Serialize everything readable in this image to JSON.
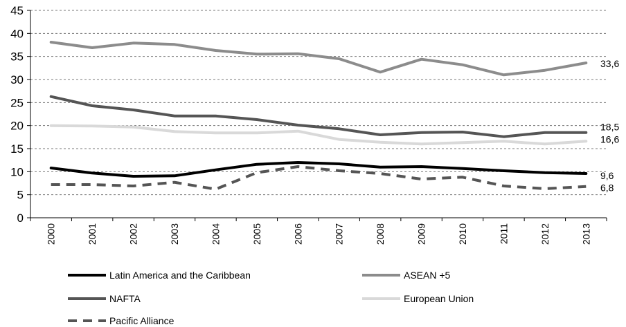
{
  "chart_data": {
    "type": "line",
    "categories": [
      "2000",
      "2001",
      "2002",
      "2003",
      "2004",
      "2005",
      "2006",
      "2007",
      "2008",
      "2009",
      "2010",
      "2011",
      "2012",
      "2013"
    ],
    "ylim": [
      0,
      45
    ],
    "yticks": [
      "0",
      "5",
      "10",
      "15",
      "20",
      "25",
      "30",
      "35",
      "40",
      "45"
    ],
    "grid": "horizontal dashed",
    "legend_position": "bottom",
    "series": [
      {
        "name": "Latin America and the Caribbean",
        "color": "#000000",
        "dash": "solid",
        "values": [
          10.8,
          9.7,
          9.0,
          9.1,
          10.4,
          11.6,
          12.0,
          11.7,
          11.0,
          11.1,
          10.7,
          10.2,
          9.8,
          9.6
        ],
        "end_label": "9,6"
      },
      {
        "name": "ASEAN +5",
        "color": "#8c8c8c",
        "dash": "solid",
        "values": [
          38.1,
          36.9,
          37.9,
          37.6,
          36.3,
          35.5,
          35.6,
          34.5,
          31.6,
          34.4,
          33.2,
          31.0,
          32.0,
          33.6
        ],
        "end_label": "33,6"
      },
      {
        "name": "NAFTA",
        "color": "#555555",
        "dash": "solid",
        "values": [
          26.3,
          24.3,
          23.4,
          22.1,
          22.1,
          21.3,
          20.1,
          19.3,
          18.0,
          18.5,
          18.6,
          17.6,
          18.5,
          18.5
        ],
        "end_label": "18,5"
      },
      {
        "name": "European Union",
        "color": "#d9d9d9",
        "dash": "solid",
        "values": [
          20.0,
          19.9,
          19.7,
          18.7,
          18.4,
          18.4,
          18.8,
          17.0,
          16.4,
          16.0,
          16.3,
          16.6,
          16.0,
          16.6
        ],
        "end_label": "16,6"
      },
      {
        "name": "Pacific Alliance",
        "color": "#555555",
        "dash": "dashed",
        "values": [
          7.2,
          7.2,
          6.9,
          7.7,
          6.2,
          9.8,
          11.1,
          10.2,
          9.6,
          8.4,
          8.8,
          6.9,
          6.3,
          6.8
        ],
        "end_label": "6,8"
      }
    ]
  }
}
